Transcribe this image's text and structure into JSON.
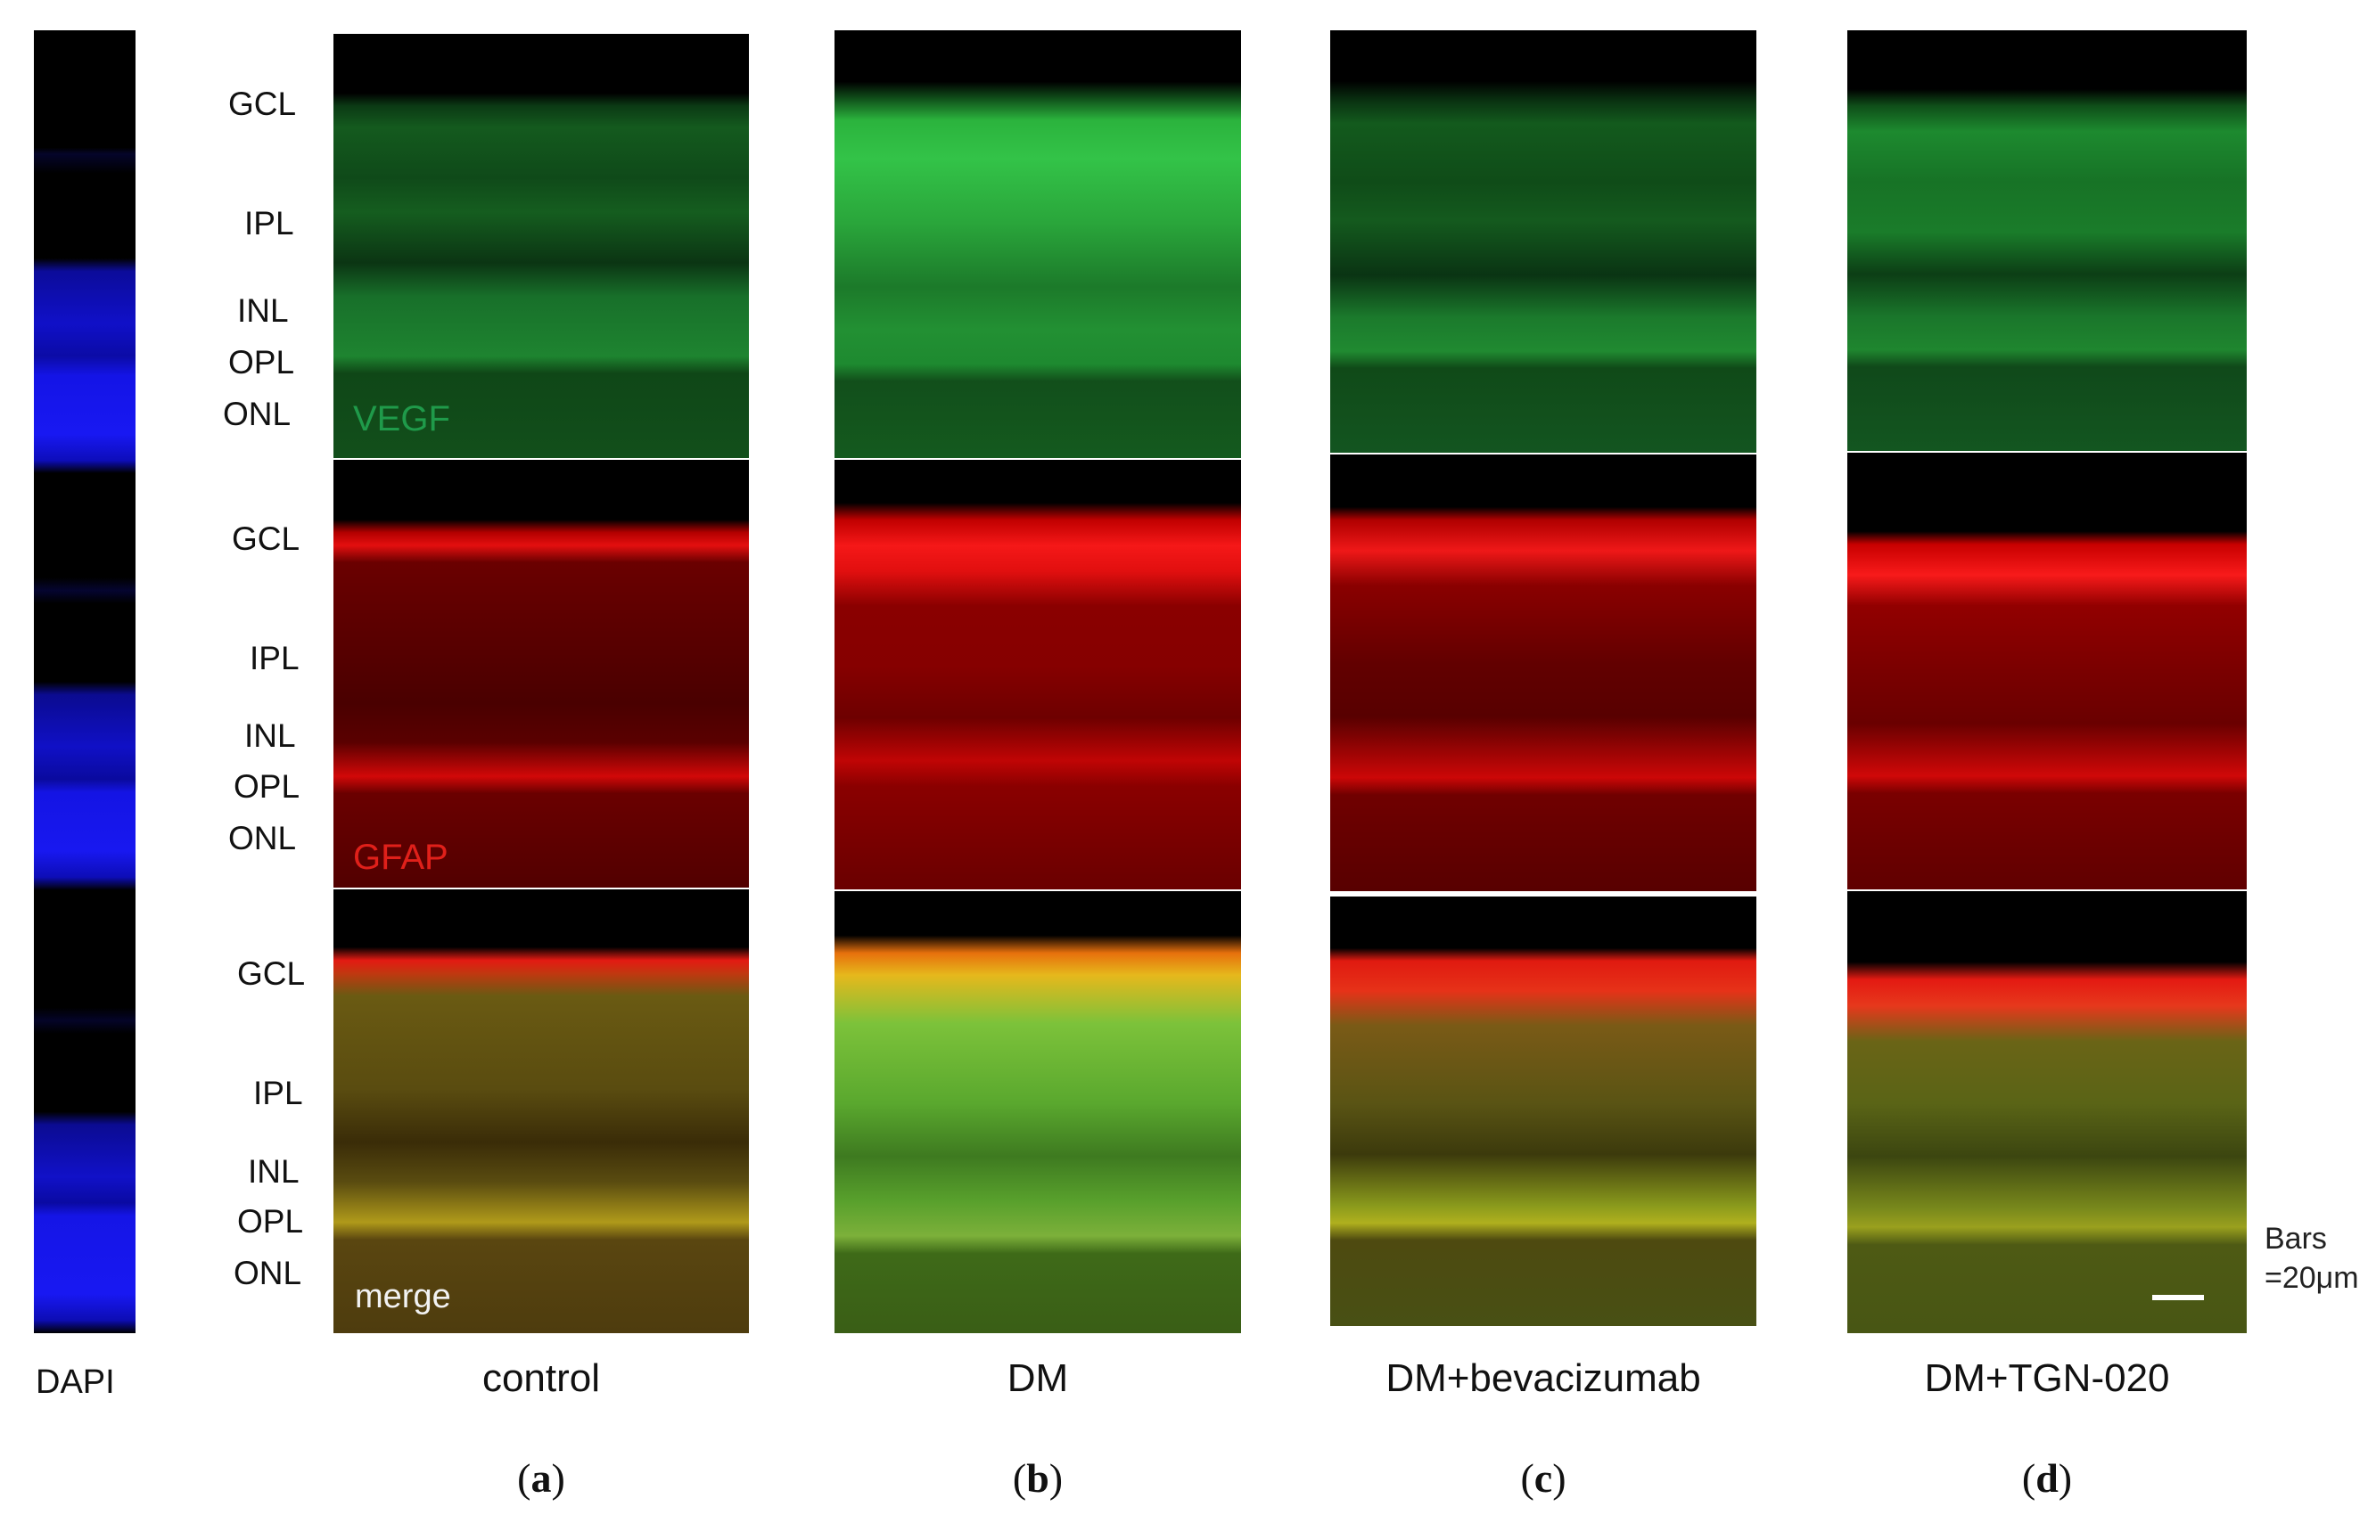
{
  "layer_labels": [
    "GCL",
    "IPL",
    "INL",
    "OPL",
    "ONL"
  ],
  "row_markers": {
    "vegf": "VEGF",
    "gfap": "GFAP",
    "merge": "merge"
  },
  "marker_colors": {
    "vegf": "#1f9a4a",
    "gfap": "#e0201a",
    "merge": "#f2f2f2"
  },
  "dapi_label": "DAPI",
  "columns": [
    {
      "label": "control",
      "letter": "a"
    },
    {
      "label": "DM",
      "letter": "b"
    },
    {
      "label": "DM+bevacizumab",
      "letter": "c"
    },
    {
      "label": "DM+TGN-020",
      "letter": "d"
    }
  ],
  "scale": {
    "line1": "Bars",
    "line2": "=20μm"
  }
}
